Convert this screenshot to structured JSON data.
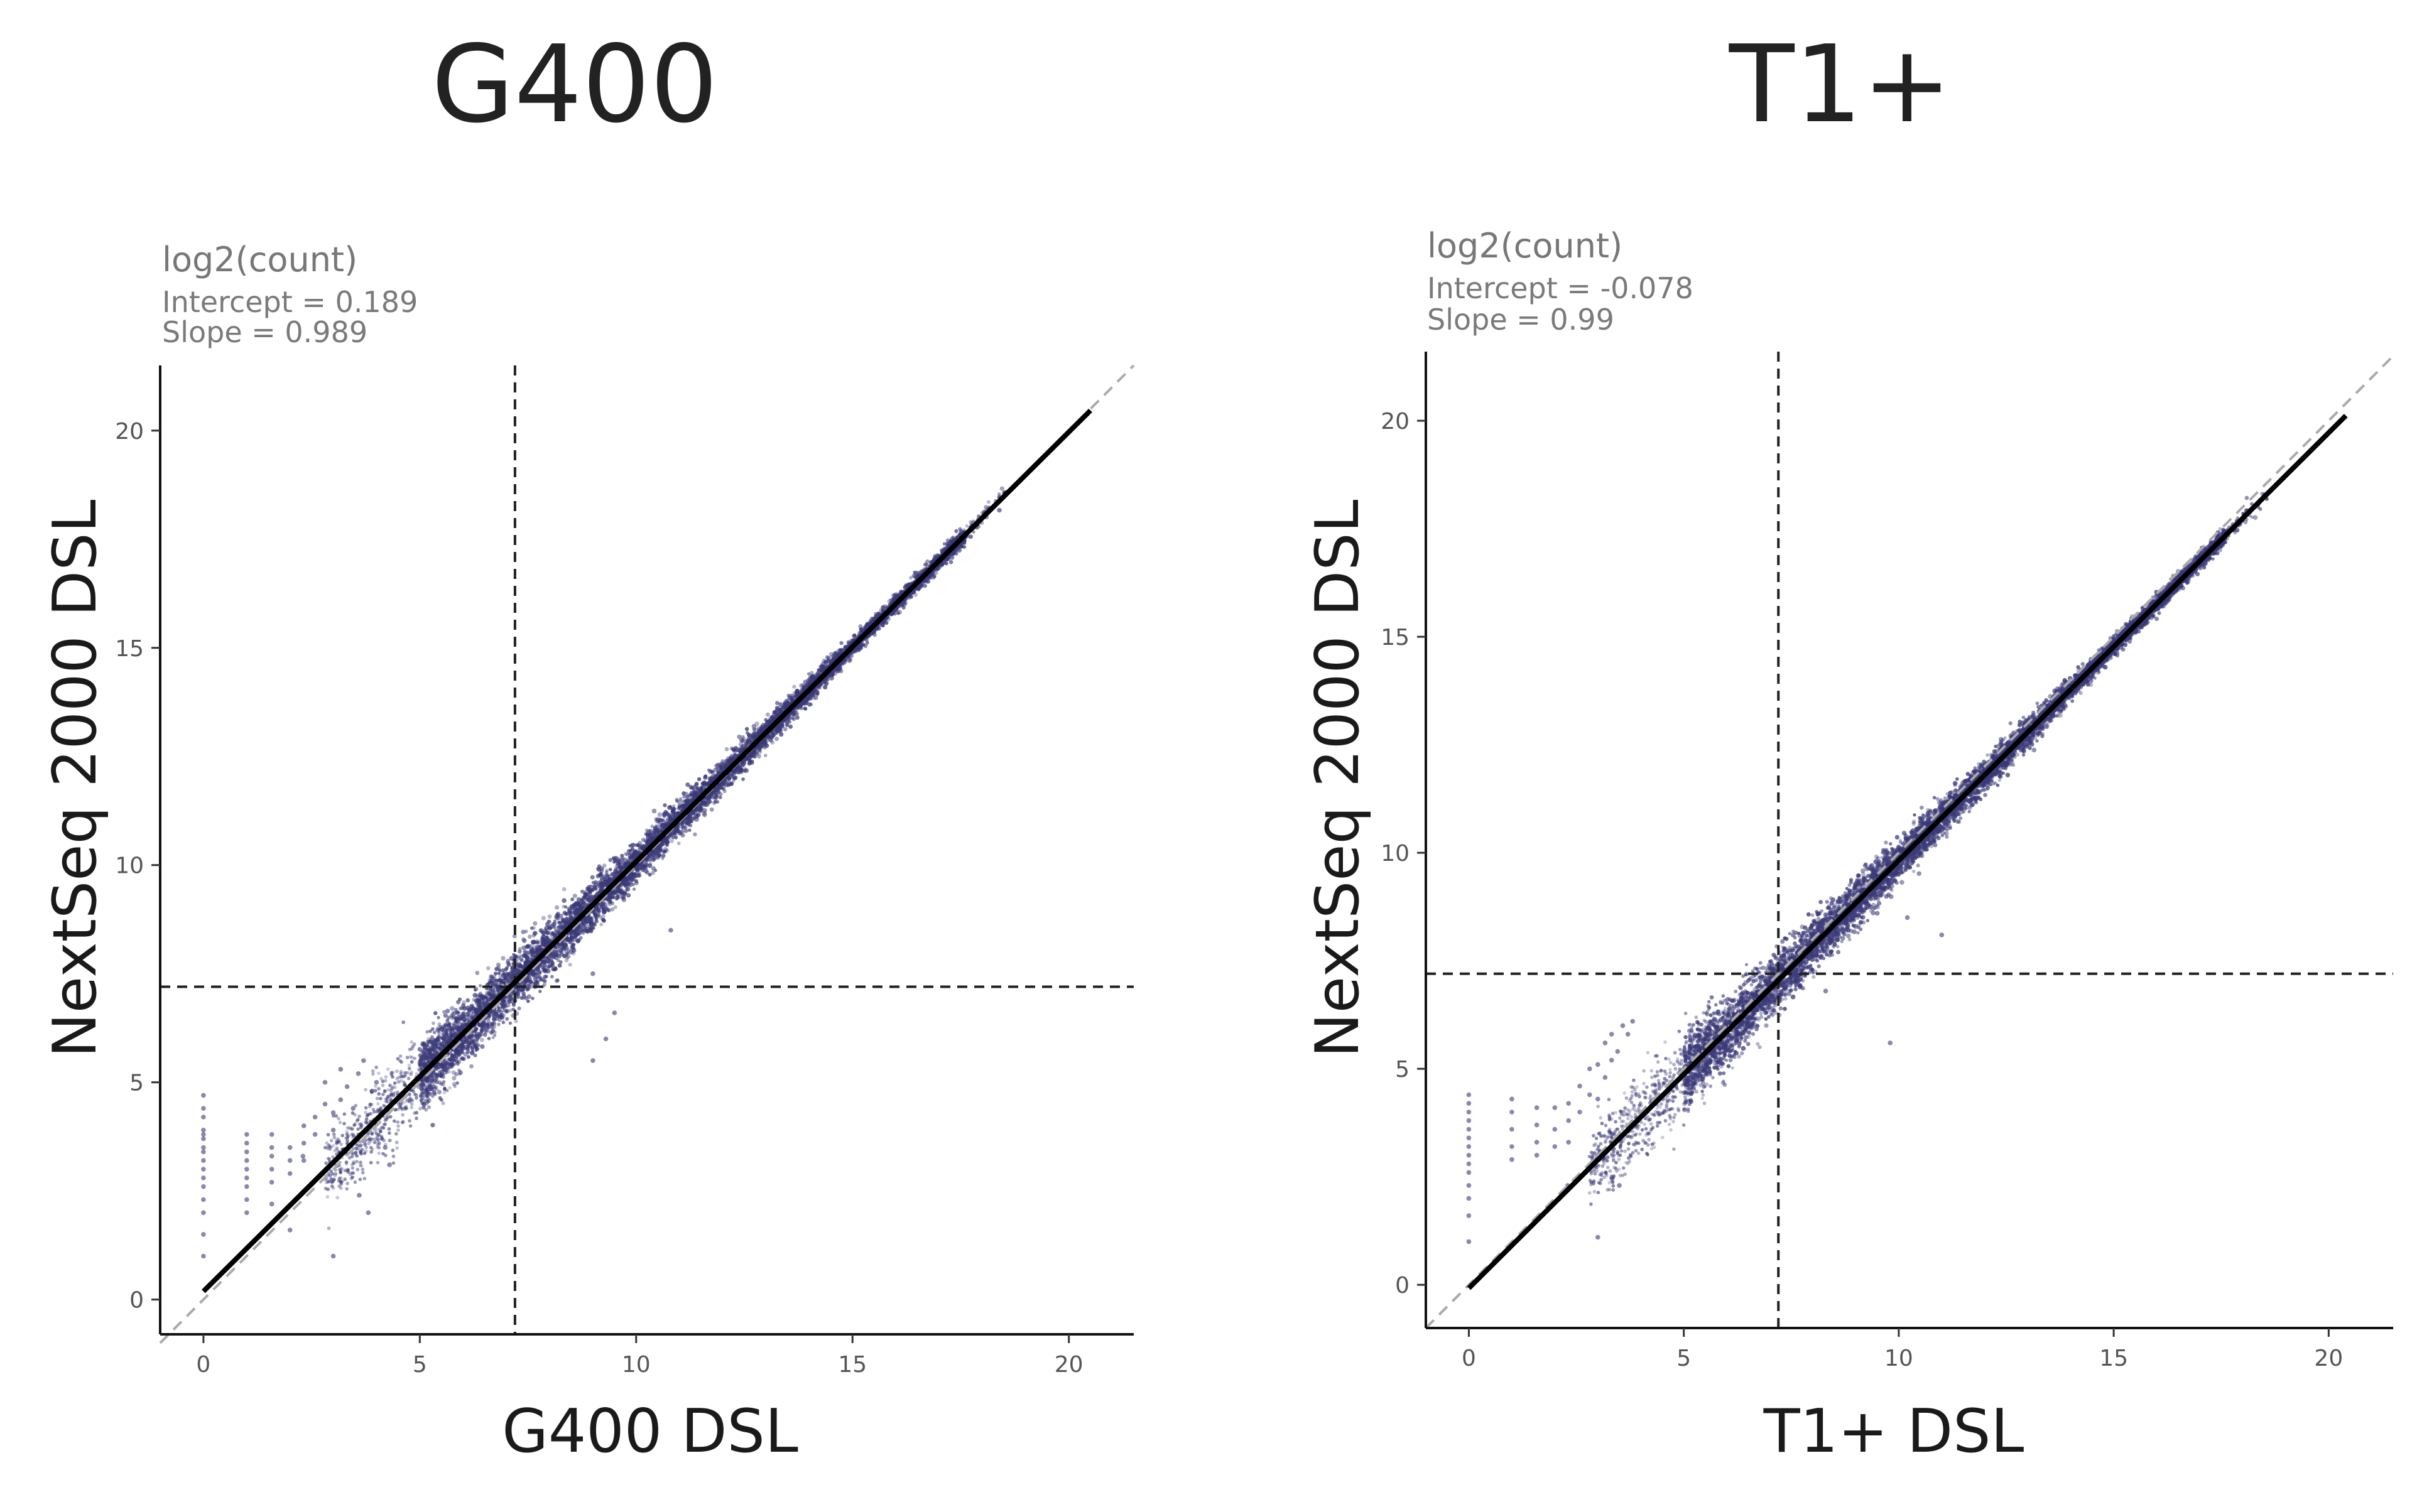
{
  "chart_data": [
    {
      "type": "scatter",
      "title": "G400",
      "xlabel": "G400 DSL",
      "ylabel": "NextSeq 2000 DSL",
      "subtitle": "log2(count)",
      "stats": {
        "intercept": "Intercept = 0.189",
        "slope": "Slope = 0.989"
      },
      "fit": {
        "intercept": 0.189,
        "slope": 0.989
      },
      "threshold": {
        "x": 7.2,
        "y": 7.2
      },
      "xlim": [
        -1.0,
        21.5
      ],
      "ylim": [
        -0.8,
        21.5
      ],
      "xticks": [
        0,
        5,
        10,
        15,
        20
      ],
      "yticks": [
        0,
        5,
        10,
        15,
        20
      ],
      "grid": false,
      "point_color": "#3b3a78",
      "fit_range": [
        0,
        20.5
      ],
      "sparse_points": [
        [
          0,
          4.7
        ],
        [
          0,
          4.4
        ],
        [
          0,
          4.2
        ],
        [
          0,
          3.9
        ],
        [
          0,
          3.8
        ],
        [
          0,
          3.7
        ],
        [
          0,
          3.5
        ],
        [
          0,
          3.4
        ],
        [
          0,
          3.2
        ],
        [
          0,
          3.0
        ],
        [
          0,
          2.8
        ],
        [
          0,
          2.6
        ],
        [
          0,
          2.3
        ],
        [
          0,
          2.0
        ],
        [
          0,
          1.5
        ],
        [
          0,
          1.0
        ],
        [
          1,
          3.8
        ],
        [
          1,
          3.6
        ],
        [
          1,
          3.4
        ],
        [
          1,
          3.2
        ],
        [
          1,
          3.0
        ],
        [
          1,
          2.8
        ],
        [
          1,
          2.6
        ],
        [
          1,
          2.3
        ],
        [
          1,
          2.0
        ],
        [
          1.58,
          3.8
        ],
        [
          1.58,
          3.5
        ],
        [
          1.58,
          3.3
        ],
        [
          1.58,
          3.0
        ],
        [
          1.58,
          2.7
        ],
        [
          1.58,
          2.2
        ],
        [
          2,
          3.5
        ],
        [
          2,
          3.2
        ],
        [
          2,
          2.9
        ],
        [
          2.32,
          4.0
        ],
        [
          2.32,
          3.6
        ],
        [
          2.32,
          3.2
        ],
        [
          2.58,
          4.2
        ],
        [
          2.58,
          3.8
        ],
        [
          2.81,
          5.0
        ],
        [
          2.81,
          4.5
        ],
        [
          3,
          4.3
        ],
        [
          3,
          3.9
        ],
        [
          3,
          1.0
        ],
        [
          3.17,
          5.3
        ],
        [
          3.17,
          4.6
        ],
        [
          3.32,
          4.9
        ],
        [
          3.46,
          4.4
        ],
        [
          3.58,
          5.2
        ],
        [
          3.7,
          5.5
        ],
        [
          3.81,
          2.0
        ],
        [
          3.9,
          4.8
        ],
        [
          4.0,
          5.0
        ],
        [
          3.6,
          2.4
        ],
        [
          4.2,
          3.5
        ],
        [
          4.3,
          3.1
        ],
        [
          2.3,
          3.3
        ],
        [
          2.0,
          1.6
        ]
      ],
      "outliers": [
        [
          8.5,
          8.0
        ],
        [
          9.0,
          7.5
        ],
        [
          9.5,
          6.6
        ],
        [
          9.3,
          6.0
        ],
        [
          9.0,
          5.5
        ],
        [
          10.8,
          8.5
        ]
      ]
    },
    {
      "type": "scatter",
      "title": "T1+",
      "xlabel": "T1+ DSL",
      "ylabel": "NextSeq 2000 DSL",
      "subtitle": "log2(count)",
      "stats": {
        "intercept": "Intercept = -0.078",
        "slope": "Slope = 0.99"
      },
      "fit": {
        "intercept": -0.078,
        "slope": 0.99
      },
      "threshold": {
        "x": 7.2,
        "y": 7.2
      },
      "xlim": [
        -1.0,
        21.5
      ],
      "ylim": [
        -1.0,
        21.6
      ],
      "xticks": [
        0,
        5,
        10,
        15,
        20
      ],
      "yticks": [
        0,
        5,
        10,
        15,
        20
      ],
      "grid": false,
      "point_color": "#3b3a78",
      "fit_range": [
        0,
        20.4
      ],
      "sparse_points": [
        [
          0,
          4.4
        ],
        [
          0,
          4.2
        ],
        [
          0,
          4.0
        ],
        [
          0,
          3.8
        ],
        [
          0,
          3.6
        ],
        [
          0,
          3.4
        ],
        [
          0,
          3.2
        ],
        [
          0,
          3.0
        ],
        [
          0,
          2.8
        ],
        [
          0,
          2.6
        ],
        [
          0,
          2.3
        ],
        [
          0,
          2.0
        ],
        [
          0,
          1.6
        ],
        [
          0,
          1.0
        ],
        [
          1,
          4.3
        ],
        [
          1,
          4.0
        ],
        [
          1,
          3.6
        ],
        [
          1,
          3.2
        ],
        [
          1,
          2.9
        ],
        [
          1.58,
          4.1
        ],
        [
          1.58,
          3.7
        ],
        [
          1.58,
          3.3
        ],
        [
          1.58,
          3.0
        ],
        [
          2,
          4.1
        ],
        [
          2,
          3.6
        ],
        [
          2,
          3.2
        ],
        [
          2.32,
          4.2
        ],
        [
          2.32,
          3.8
        ],
        [
          2.32,
          3.3
        ],
        [
          2.58,
          4.6
        ],
        [
          2.58,
          4.0
        ],
        [
          2.81,
          5.0
        ],
        [
          2.81,
          4.4
        ],
        [
          3.0,
          5.1
        ],
        [
          3.0,
          4.3
        ],
        [
          3.17,
          5.6
        ],
        [
          3.17,
          4.8
        ],
        [
          3.32,
          5.8
        ],
        [
          3.32,
          5.2
        ],
        [
          3.46,
          5.4
        ],
        [
          3.58,
          6.0
        ],
        [
          3.0,
          1.1
        ],
        [
          3.7,
          5.8
        ],
        [
          3.81,
          6.1
        ],
        [
          2.3,
          2.3
        ],
        [
          3.5,
          2.3
        ]
      ],
      "outliers": [
        [
          9.5,
          8.6
        ],
        [
          10.2,
          8.5
        ],
        [
          8.3,
          6.8
        ],
        [
          9.8,
          5.6
        ],
        [
          11.0,
          8.1
        ]
      ]
    }
  ]
}
